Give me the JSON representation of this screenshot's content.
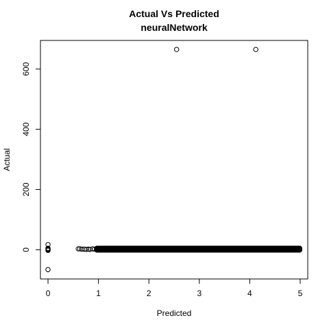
{
  "chart_data": {
    "type": "scatter",
    "title": "Actual Vs Predicted",
    "subtitle": "neuralNetwork",
    "xlabel": "Predicted",
    "ylabel": "Actual",
    "xlim": [
      -0.15,
      5.15
    ],
    "ylim": [
      -97,
      695
    ],
    "xticks": [
      0,
      1,
      2,
      3,
      4,
      5
    ],
    "yticks": [
      0,
      200,
      400,
      600
    ],
    "marker": "open-circle",
    "color": "#000000",
    "points": [
      {
        "x": 0.0,
        "y": -66
      },
      {
        "x": 0.0,
        "y": 17
      },
      {
        "x": 0.0,
        "y": 5
      },
      {
        "x": 0.0,
        "y": 1
      },
      {
        "x": 0.0,
        "y": 0
      },
      {
        "x": 0.0,
        "y": -2
      },
      {
        "x": 0.0,
        "y": 3
      },
      {
        "x": 2.55,
        "y": 665
      },
      {
        "x": 4.12,
        "y": 665
      },
      {
        "x": 0.6,
        "y": 3
      },
      {
        "x": 0.63,
        "y": 3
      },
      {
        "x": 0.67,
        "y": 2
      },
      {
        "x": 0.72,
        "y": 2
      },
      {
        "x": 0.76,
        "y": 1
      },
      {
        "x": 0.8,
        "y": 2
      },
      {
        "x": 0.83,
        "y": 1
      },
      {
        "x": 0.88,
        "y": 3
      },
      {
        "x": 0.92,
        "y": 2
      },
      {
        "x": 0.96,
        "y": 1
      },
      {
        "x": 0.98,
        "y": 3
      }
    ],
    "dense_band": {
      "x_start": 0.97,
      "x_end": 5.0,
      "y_values": [
        -1,
        0,
        1,
        2,
        3,
        4,
        5
      ]
    }
  }
}
